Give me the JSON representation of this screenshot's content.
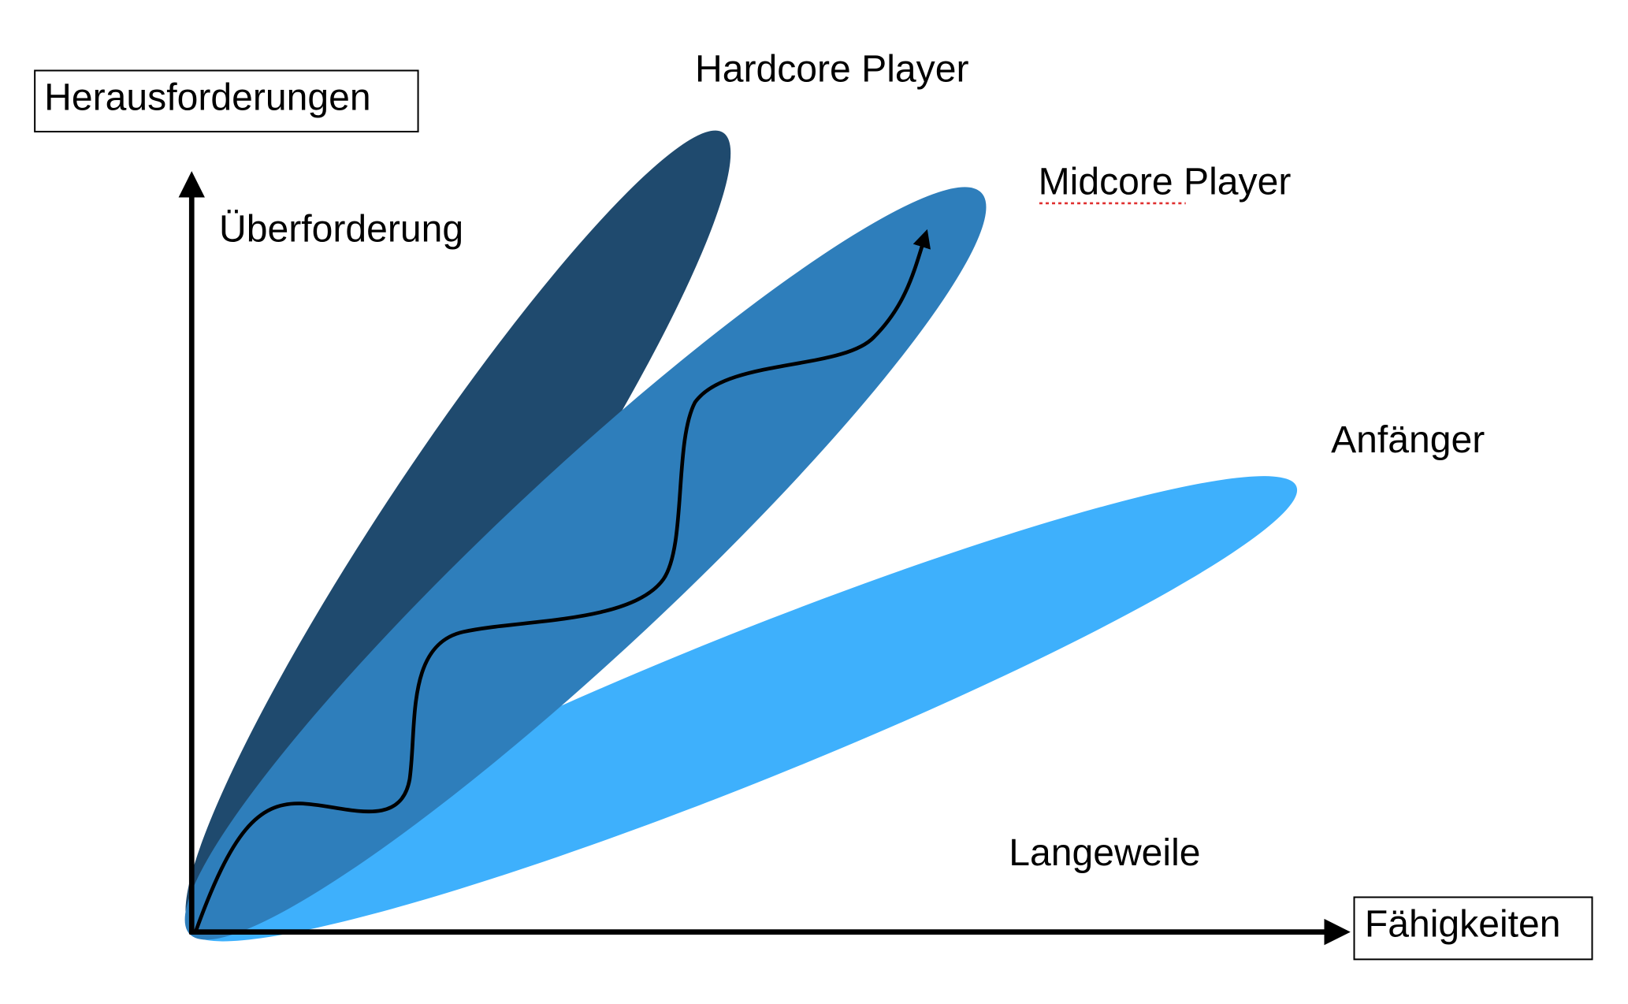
{
  "axes": {
    "y_label": "Herausforderungen",
    "x_label": "Fähigkeiten"
  },
  "zones": {
    "top": "Überforderung",
    "bottom": "Langeweile"
  },
  "groups": [
    {
      "label": "Hardcore Player"
    },
    {
      "label": "Midcore Player"
    },
    {
      "label": "Anfänger"
    }
  ]
}
